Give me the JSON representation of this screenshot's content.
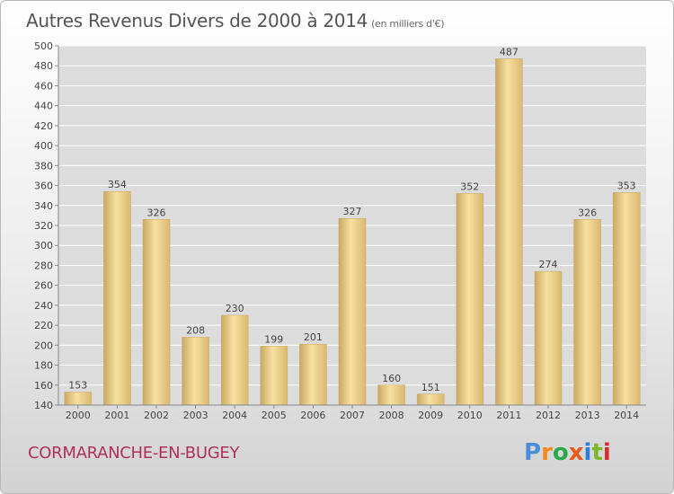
{
  "header": {
    "title": "Autres Revenus Divers de 2000 à 2014",
    "unit": "(en milliers d'€)"
  },
  "footer": {
    "commune": "CORMARANCHE-EN-BUGEY"
  },
  "logo": {
    "text": "Proxiti",
    "colors": [
      "#4a8fd6",
      "#f08a1c",
      "#2aa84a",
      "#e85a1c",
      "#2a7fd6",
      "#7ab82a",
      "#d92c2c"
    ]
  },
  "colors": {
    "bar_light": "#f8e2a0",
    "bar_dark": "#cfad68",
    "grid": "#ffffff",
    "plot_bg": "#dcdcdc"
  },
  "chart_data": {
    "type": "bar",
    "categories": [
      "2000",
      "2001",
      "2002",
      "2003",
      "2004",
      "2005",
      "2006",
      "2007",
      "2008",
      "2009",
      "2010",
      "2011",
      "2012",
      "2013",
      "2014"
    ],
    "values": [
      153,
      354,
      326,
      208,
      230,
      199,
      201,
      327,
      160,
      151,
      352,
      487,
      274,
      326,
      353
    ],
    "ylim": [
      140,
      500
    ],
    "yticks": [
      140,
      160,
      180,
      200,
      220,
      240,
      260,
      280,
      300,
      320,
      340,
      360,
      380,
      400,
      420,
      440,
      460,
      480,
      500
    ],
    "grid": true,
    "legend": "none"
  }
}
